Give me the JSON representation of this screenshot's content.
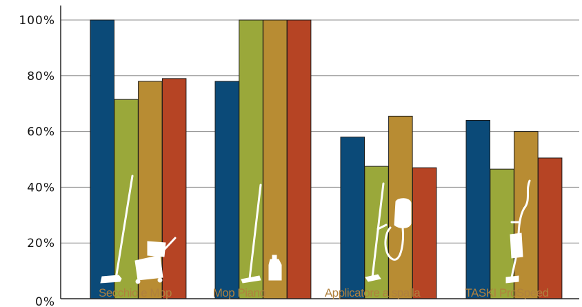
{
  "chart_data": {
    "type": "bar",
    "title": "",
    "xlabel": "",
    "ylabel": "",
    "ylim": [
      0,
      100
    ],
    "y_ticks": [
      "0%",
      "20%",
      "40%",
      "60%",
      "80%",
      "100%"
    ],
    "y_tick_values": [
      0,
      20,
      40,
      60,
      80,
      100
    ],
    "categories": [
      "Secchio e Mop",
      "Mop Piano",
      "Applicatore a spalla",
      "TASKI ProSpeed"
    ],
    "series": [
      {
        "color": "#0b4a78",
        "values": [
          100,
          78,
          58,
          64
        ]
      },
      {
        "color": "#9aa83a",
        "values": [
          71.5,
          100,
          47.5,
          46.5
        ]
      },
      {
        "color": "#b88c33",
        "values": [
          78,
          100,
          65.5,
          60
        ]
      },
      {
        "color": "#b64424",
        "values": [
          79,
          100,
          47,
          50.5
        ]
      }
    ],
    "grid": true,
    "legend": "none",
    "category_label_color": "#b0813e",
    "product_icons": [
      "bucket-and-mop-icon",
      "flat-mop-icon",
      "shoulder-applicator-icon",
      "taski-prospeed-icon"
    ]
  }
}
